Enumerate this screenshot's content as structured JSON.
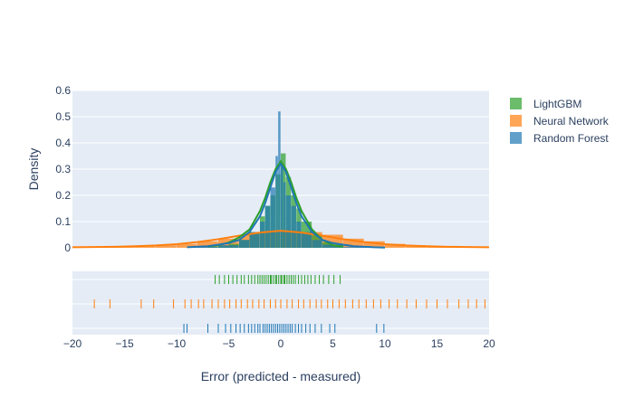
{
  "chart_data": {
    "type": "histogram",
    "title": "",
    "xlabel": "Error (predicted - measured)",
    "ylabel": "Density",
    "xlim": [
      -20,
      20
    ],
    "ylim": [
      0,
      0.6
    ],
    "x_ticks": [
      -20,
      -15,
      -10,
      -5,
      0,
      5,
      10,
      15,
      20
    ],
    "x_tick_labels": [
      "−20",
      "−15",
      "−10",
      "−5",
      "0",
      "5",
      "10",
      "15",
      "20"
    ],
    "y_ticks": [
      0,
      0.1,
      0.2,
      0.3,
      0.4,
      0.5,
      0.6
    ],
    "y_tick_labels": [
      "0",
      "0.1",
      "0.2",
      "0.3",
      "0.4",
      "0.5",
      "0.6"
    ],
    "legend_position": "top-right",
    "series": [
      {
        "name": "LightGBM",
        "color": "#2ca02c",
        "histogram": {
          "bins": [
            -7,
            -6,
            -5,
            -4,
            -3,
            -2,
            -1.5,
            -1,
            -0.5,
            0,
            0.5,
            1,
            1.5,
            2,
            3,
            4,
            5,
            6
          ],
          "density": [
            0.004,
            0.008,
            0.015,
            0.03,
            0.06,
            0.12,
            0.16,
            0.2,
            0.28,
            0.36,
            0.27,
            0.2,
            0.15,
            0.1,
            0.05,
            0.02,
            0.008
          ]
        },
        "density_curve": {
          "x": [
            -7,
            -6,
            -5,
            -4,
            -3,
            -2,
            -1.5,
            -1,
            -0.5,
            0,
            0.5,
            1,
            1.5,
            2,
            3,
            4,
            5,
            6
          ],
          "y": [
            0.005,
            0.01,
            0.02,
            0.04,
            0.07,
            0.14,
            0.19,
            0.25,
            0.3,
            0.33,
            0.3,
            0.25,
            0.19,
            0.14,
            0.07,
            0.03,
            0.01,
            0.004
          ]
        },
        "rug": [
          -6.3,
          -5.9,
          -5.4,
          -5.0,
          -4.6,
          -4.2,
          -3.8,
          -3.5,
          -3.1,
          -2.8,
          -2.5,
          -2.2,
          -2.0,
          -1.8,
          -1.6,
          -1.4,
          -1.2,
          -1.0,
          -0.9,
          -0.7,
          -0.5,
          -0.4,
          -0.2,
          0.0,
          0.1,
          0.3,
          0.4,
          0.6,
          0.8,
          1.0,
          1.2,
          1.4,
          1.7,
          2.0,
          2.3,
          2.6,
          2.9,
          3.3,
          3.7,
          4.1,
          4.6,
          5.1,
          5.7
        ]
      },
      {
        "name": "Neural Network",
        "color": "#ff7f0e",
        "histogram": {
          "bins": [
            -18,
            -16,
            -14,
            -12,
            -10,
            -8,
            -6,
            -4,
            -2,
            0,
            2,
            4,
            6,
            8,
            10,
            12,
            14,
            16,
            18,
            20
          ],
          "density": [
            0.003,
            0.004,
            0.006,
            0.01,
            0.015,
            0.025,
            0.035,
            0.05,
            0.06,
            0.065,
            0.06,
            0.05,
            0.035,
            0.025,
            0.015,
            0.01,
            0.006,
            0.004,
            0.003
          ]
        },
        "density_curve": {
          "x": [
            -20,
            -18,
            -16,
            -14,
            -12,
            -10,
            -8,
            -6,
            -4,
            -2,
            0,
            2,
            4,
            6,
            8,
            10,
            12,
            14,
            16,
            18,
            20
          ],
          "y": [
            0.002,
            0.003,
            0.004,
            0.006,
            0.009,
            0.014,
            0.022,
            0.033,
            0.046,
            0.058,
            0.065,
            0.058,
            0.046,
            0.033,
            0.022,
            0.014,
            0.009,
            0.006,
            0.004,
            0.003,
            0.002
          ]
        },
        "rug": [
          -17.9,
          -16.4,
          -13.4,
          -12.2,
          -10.3,
          -9.2,
          -8.6,
          -7.9,
          -7.4,
          -6.6,
          -6.0,
          -5.4,
          -4.9,
          -4.3,
          -3.8,
          -3.2,
          -2.7,
          -2.1,
          -1.6,
          -1.0,
          -0.5,
          0.0,
          0.6,
          1.1,
          1.7,
          2.2,
          2.8,
          3.4,
          3.9,
          4.5,
          5.0,
          5.6,
          6.2,
          6.9,
          7.5,
          8.2,
          8.9,
          9.6,
          10.4,
          11.2,
          12.1,
          13.0,
          14.0,
          15.0,
          16.0,
          17.1,
          18.0,
          18.8,
          19.6
        ]
      },
      {
        "name": "Random Forest",
        "color": "#1f77b4",
        "histogram": {
          "bins": [
            -9,
            -8,
            -6,
            -4,
            -3,
            -2,
            -1.5,
            -1,
            -0.5,
            -0.25,
            0,
            0.25,
            0.5,
            1,
            1.5,
            2,
            3,
            4,
            6,
            8,
            10
          ],
          "density": [
            0.002,
            0.004,
            0.01,
            0.03,
            0.06,
            0.1,
            0.16,
            0.23,
            0.35,
            0.52,
            0.31,
            0.25,
            0.2,
            0.16,
            0.1,
            0.06,
            0.03,
            0.012,
            0.004,
            0.002
          ]
        },
        "density_curve": {
          "x": [
            -9,
            -7,
            -5,
            -4,
            -3,
            -2,
            -1.5,
            -1,
            -0.5,
            0,
            0.5,
            1,
            1.5,
            2,
            3,
            4,
            5,
            7,
            9,
            10
          ],
          "y": [
            0.002,
            0.006,
            0.018,
            0.03,
            0.06,
            0.12,
            0.17,
            0.23,
            0.29,
            0.32,
            0.29,
            0.23,
            0.17,
            0.12,
            0.06,
            0.03,
            0.018,
            0.006,
            0.002,
            0.001
          ]
        },
        "rug": [
          -9.3,
          -9.0,
          -7.0,
          -6.0,
          -5.3,
          -4.8,
          -4.3,
          -3.9,
          -3.5,
          -3.1,
          -2.8,
          -2.5,
          -2.2,
          -2.0,
          -1.7,
          -1.5,
          -1.3,
          -1.1,
          -0.9,
          -0.7,
          -0.5,
          -0.3,
          -0.1,
          0.1,
          0.3,
          0.5,
          0.7,
          0.9,
          1.1,
          1.4,
          1.7,
          2.0,
          2.4,
          2.8,
          3.3,
          3.9,
          4.7,
          5.2,
          9.2,
          9.9
        ]
      }
    ]
  }
}
